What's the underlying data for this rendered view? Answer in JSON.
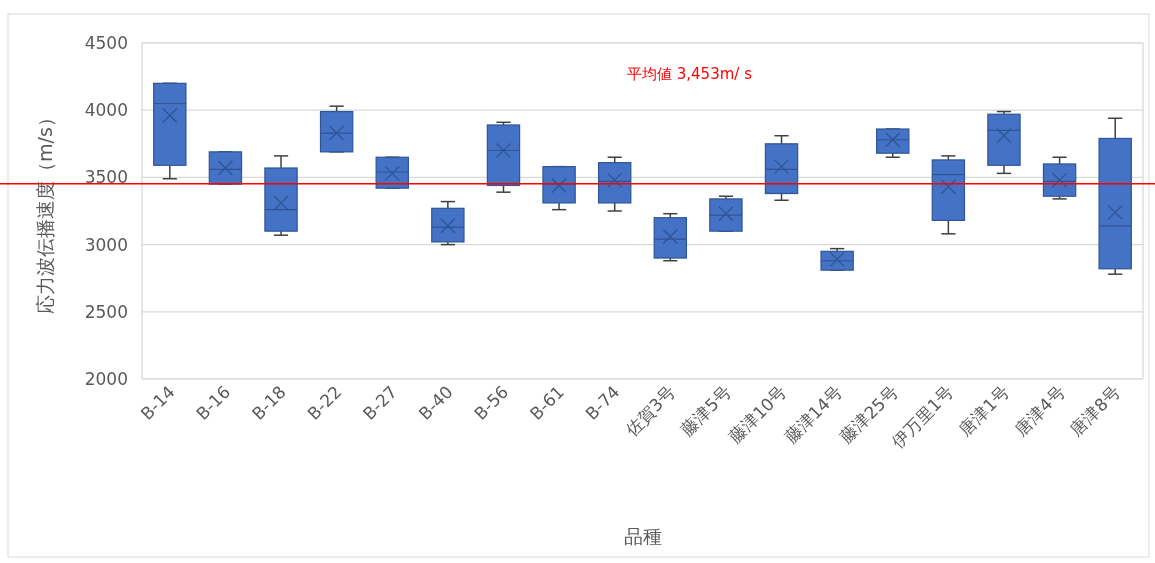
{
  "chart_data": {
    "type": "box",
    "xlabel": "品種",
    "ylabel": "応力波伝播速度（m/s）",
    "categories": [
      "B-14",
      "B-16",
      "B-18",
      "B-22",
      "B-27",
      "B-40",
      "B-56",
      "B-61",
      "B-74",
      "佐賀3号",
      "藤津5号",
      "藤津10号",
      "藤津14号",
      "藤津25号",
      "伊万里1号",
      "唐津1号",
      "唐津4号",
      "唐津8号"
    ],
    "color": "#4472c4",
    "boxes": [
      {
        "low": 3490,
        "q1": 3590,
        "median": 4050,
        "q3": 4200,
        "high": 4200,
        "mean": 3960
      },
      {
        "low": 3450,
        "q1": 3450,
        "median": 3560,
        "q3": 3690,
        "high": 3690,
        "mean": 3570
      },
      {
        "low": 3070,
        "q1": 3100,
        "median": 3260,
        "q3": 3570,
        "high": 3660,
        "mean": 3310
      },
      {
        "low": 3690,
        "q1": 3690,
        "median": 3830,
        "q3": 3990,
        "high": 4030,
        "mean": 3830
      },
      {
        "low": 3420,
        "q1": 3420,
        "median": 3540,
        "q3": 3650,
        "high": 3650,
        "mean": 3530
      },
      {
        "low": 3000,
        "q1": 3020,
        "median": 3130,
        "q3": 3270,
        "high": 3320,
        "mean": 3140
      },
      {
        "low": 3390,
        "q1": 3440,
        "median": 3700,
        "q3": 3890,
        "high": 3910,
        "mean": 3700
      },
      {
        "low": 3260,
        "q1": 3310,
        "median": 3450,
        "q3": 3580,
        "high": 3580,
        "mean": 3440
      },
      {
        "low": 3250,
        "q1": 3310,
        "median": 3470,
        "q3": 3610,
        "high": 3650,
        "mean": 3480
      },
      {
        "low": 2880,
        "q1": 2900,
        "median": 3040,
        "q3": 3200,
        "high": 3230,
        "mean": 3060
      },
      {
        "low": 3100,
        "q1": 3100,
        "median": 3220,
        "q3": 3340,
        "high": 3360,
        "mean": 3230
      },
      {
        "low": 3330,
        "q1": 3380,
        "median": 3560,
        "q3": 3750,
        "high": 3810,
        "mean": 3580
      },
      {
        "low": 2810,
        "q1": 2810,
        "median": 2880,
        "q3": 2950,
        "high": 2970,
        "mean": 2890
      },
      {
        "low": 3650,
        "q1": 3680,
        "median": 3780,
        "q3": 3860,
        "high": 3860,
        "mean": 3780
      },
      {
        "low": 3080,
        "q1": 3180,
        "median": 3520,
        "q3": 3630,
        "high": 3660,
        "mean": 3430
      },
      {
        "low": 3530,
        "q1": 3590,
        "median": 3850,
        "q3": 3970,
        "high": 3990,
        "mean": 3810
      },
      {
        "low": 3340,
        "q1": 3360,
        "median": 3470,
        "q3": 3600,
        "high": 3650,
        "mean": 3480
      },
      {
        "low": 2780,
        "q1": 2820,
        "median": 3140,
        "q3": 3790,
        "high": 3940,
        "mean": 3240
      }
    ],
    "ylim": [
      2000,
      4500
    ],
    "yticks": [
      2000,
      2500,
      3000,
      3500,
      4000,
      4500
    ],
    "grid": "y",
    "ref_lines": [
      {
        "axis": "y",
        "value": 3453,
        "label": "平均値 3,453m/ s",
        "color": "#ff0000"
      }
    ]
  }
}
